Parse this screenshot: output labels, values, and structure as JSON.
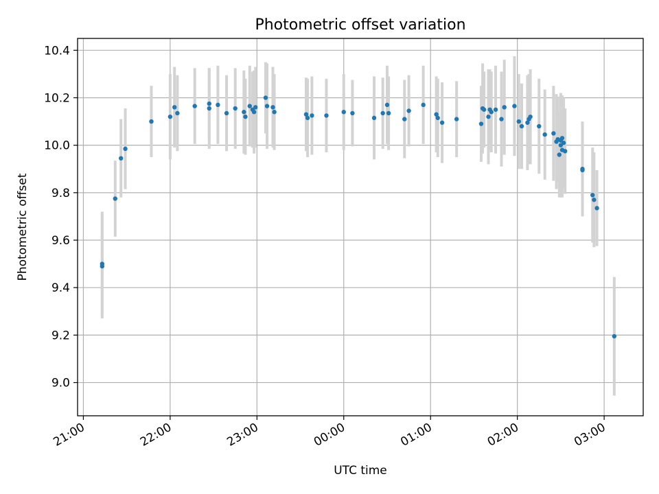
{
  "chart_data": {
    "type": "scatter",
    "title": "Photometric offset variation",
    "xlabel": "UTC time",
    "ylabel": "Photometric offset",
    "xlim": [
      "20:56",
      "03:27"
    ],
    "ylim": [
      8.86,
      10.45
    ],
    "x_ticks": [
      "21:00",
      "22:00",
      "23:00",
      "00:00",
      "01:00",
      "02:00",
      "03:00"
    ],
    "y_ticks": [
      "9.0",
      "9.2",
      "9.4",
      "9.6",
      "9.8",
      "10.0",
      "10.2",
      "10.4"
    ],
    "grid": true,
    "colors": {
      "point": "#1f77b4",
      "errorbar": "#d3d3d3",
      "grid": "#b0b0b0"
    },
    "series": [
      {
        "x": [
          "21:13",
          "21:13",
          "21:22",
          "21:26",
          "21:29",
          "21:47",
          "22:00",
          "22:03",
          "22:05",
          "22:17",
          "22:27",
          "22:27",
          "22:33",
          "22:39",
          "22:45",
          "22:51",
          "22:52",
          "22:55",
          "22:57",
          "22:58",
          "22:59",
          "23:06",
          "23:07",
          "23:11",
          "23:12",
          "23:34",
          "23:35",
          "23:38",
          "23:48",
          "00:00",
          "00:06",
          "00:21",
          "00:27",
          "00:30",
          "00:31",
          "00:42",
          "00:45",
          "00:55",
          "01:04",
          "01:05",
          "01:08",
          "01:18",
          "01:35",
          "01:36",
          "01:37",
          "01:40",
          "01:41",
          "01:42",
          "01:45",
          "01:49",
          "01:51",
          "01:58",
          "02:01",
          "02:03",
          "02:07",
          "02:08",
          "02:09",
          "02:15",
          "02:19",
          "02:25",
          "02:27",
          "02:28",
          "02:29",
          "02:30",
          "02:30",
          "02:31",
          "02:31",
          "02:32",
          "02:33",
          "02:45",
          "02:45",
          "02:52",
          "02:53",
          "02:55",
          "03:07"
        ],
        "y": [
          9.5,
          9.49,
          9.775,
          9.945,
          9.985,
          10.1,
          10.12,
          10.16,
          10.135,
          10.165,
          10.155,
          10.175,
          10.17,
          10.135,
          10.155,
          10.14,
          10.12,
          10.165,
          10.15,
          10.14,
          10.16,
          10.2,
          10.165,
          10.16,
          10.14,
          10.13,
          10.115,
          10.125,
          10.125,
          10.14,
          10.135,
          10.115,
          10.135,
          10.17,
          10.135,
          10.11,
          10.145,
          10.17,
          10.13,
          10.115,
          10.095,
          10.11,
          10.09,
          10.155,
          10.15,
          10.12,
          10.15,
          10.14,
          10.15,
          10.11,
          10.16,
          10.165,
          10.1,
          10.08,
          10.095,
          10.11,
          10.12,
          10.08,
          10.045,
          10.05,
          10.015,
          10.025,
          9.96,
          10.02,
          10.0,
          9.98,
          10.03,
          10.01,
          9.975,
          9.9,
          9.895,
          9.79,
          9.77,
          9.735,
          9.195
        ],
        "yerr": [
          0.22,
          0.22,
          0.16,
          0.165,
          0.17,
          0.15,
          0.18,
          0.17,
          0.16,
          0.16,
          0.17,
          0.15,
          0.165,
          0.16,
          0.17,
          0.175,
          0.16,
          0.17,
          0.16,
          0.175,
          0.17,
          0.15,
          0.18,
          0.17,
          0.16,
          0.155,
          0.165,
          0.165,
          0.155,
          0.16,
          0.14,
          0.175,
          0.15,
          0.165,
          0.155,
          0.165,
          0.15,
          0.165,
          0.16,
          0.165,
          0.17,
          0.16,
          0.16,
          0.19,
          0.16,
          0.2,
          0.17,
          0.17,
          0.185,
          0.2,
          0.2,
          0.21,
          0.2,
          0.18,
          0.2,
          0.19,
          0.2,
          0.2,
          0.19,
          0.2,
          0.2,
          0.18,
          0.18,
          0.19,
          0.22,
          0.2,
          0.18,
          0.19,
          0.18,
          0.2,
          0.17,
          0.2,
          0.2,
          0.16,
          0.25
        ]
      }
    ]
  }
}
